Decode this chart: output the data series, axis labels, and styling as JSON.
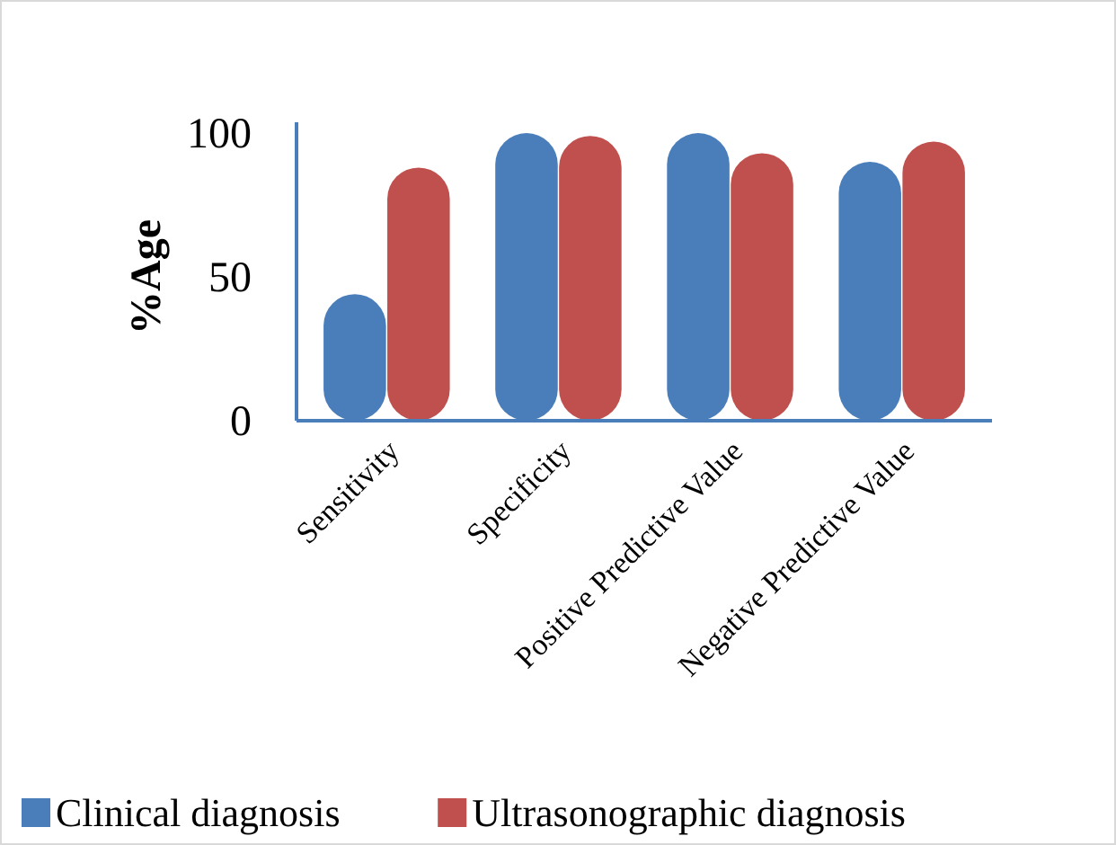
{
  "chart_data": {
    "type": "bar",
    "ylabel": "%Age",
    "categories": [
      "Sensitivity",
      "Specificity",
      "Positive Predictive Value",
      "Negative Predictive Value"
    ],
    "series": [
      {
        "name": "Clinical diagnosis",
        "color": "#4a7ebb",
        "values": [
          44,
          100,
          100,
          90
        ]
      },
      {
        "name": "Ultrasonographic diagnosis",
        "color": "#c0504d",
        "values": [
          88,
          99,
          93,
          97
        ]
      }
    ],
    "ylim": [
      0,
      100
    ],
    "yticks": [
      0,
      50,
      100
    ],
    "grid": false,
    "legend": "bottom"
  }
}
